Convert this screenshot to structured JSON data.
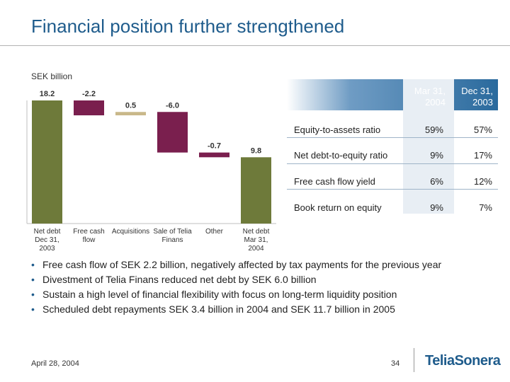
{
  "slide": {
    "title": "Financial position further strengthened",
    "unit_label": "SEK billion"
  },
  "chart_data": {
    "type": "waterfall",
    "categories": [
      "Net debt Dec 31, 2003",
      "Free cash flow",
      "Acquisitions",
      "Sale of Telia Finans",
      "Other",
      "Net debt Mar 31, 2004"
    ],
    "category_lines": [
      [
        "Net debt",
        "Dec 31,",
        "2003"
      ],
      [
        "Free cash",
        "flow"
      ],
      [
        "Acquisitions"
      ],
      [
        "Sale of Telia",
        "Finans"
      ],
      [
        "Other"
      ],
      [
        "Net debt",
        "Mar 31,",
        "2004"
      ]
    ],
    "values": [
      18.2,
      -2.2,
      0.5,
      -6.0,
      -0.7,
      9.8
    ],
    "value_labels": [
      "18.2",
      "-2.2",
      "0.5",
      "-6.0",
      "-0.7",
      "9.8"
    ],
    "bar_kinds": [
      "total",
      "delta",
      "delta",
      "delta",
      "delta",
      "total"
    ],
    "colors": {
      "total": "#6e7a3a",
      "negative": "#7a1f4e",
      "positive": "#c9b88a"
    }
  },
  "table": {
    "col_headers": [
      [
        "Mar 31,",
        "2004"
      ],
      [
        "Dec 31,",
        "2003"
      ]
    ],
    "rows": [
      {
        "label": "Equity-to-assets ratio",
        "v1": "59%",
        "v2": "57%"
      },
      {
        "label": "Net debt-to-equity ratio",
        "v1": "9%",
        "v2": "17%"
      },
      {
        "label": "Free cash flow yield",
        "v1": "6%",
        "v2": "12%"
      },
      {
        "label": "Book return on equity",
        "v1": "9%",
        "v2": "7%"
      }
    ]
  },
  "bullets": [
    "Free cash flow of SEK 2.2 billion, negatively affected by tax payments for the previous year",
    "Divestment of Telia Finans reduced net debt by SEK 6.0 billion",
    "Sustain a high level of financial flexibility with focus on long-term liquidity position",
    "Scheduled debt repayments SEK 3.4 billion in 2004 and SEK 11.7 billion in 2005"
  ],
  "footer": {
    "date": "April 28, 2004",
    "page": "34",
    "logo": "TeliaSonera"
  },
  "colors": {
    "title": "#1f5c8c",
    "table_header": "#2a6a9d"
  }
}
